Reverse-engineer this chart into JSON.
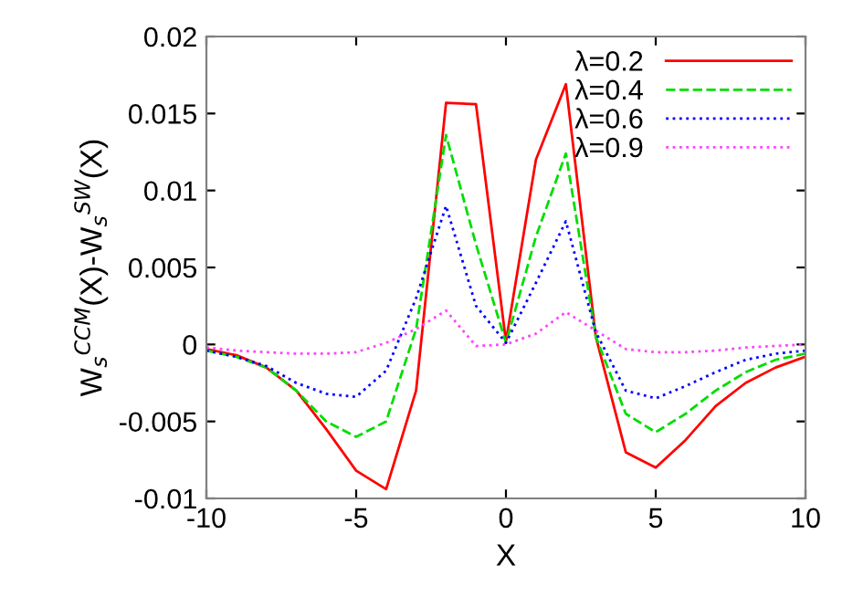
{
  "chart_data": {
    "type": "line",
    "xlabel": "X",
    "ylabel": "W$_{s}$$^{CCM}$(X)-W$_{s}$$^{SW}$(X)",
    "x": [
      -10,
      -9,
      -8,
      -7,
      -6,
      -5,
      -4,
      -3,
      -2,
      -1,
      0,
      1,
      2,
      3,
      4,
      5,
      6,
      7,
      8,
      9,
      10
    ],
    "xlim": [
      -10,
      10
    ],
    "xticks": [
      -10,
      -5,
      0,
      5,
      10
    ],
    "ylim": [
      -0.01,
      0.02
    ],
    "yticks": [
      -0.01,
      -0.005,
      0,
      0.005,
      0.01,
      0.015,
      0.02
    ],
    "legend": "top right",
    "grid": false,
    "series": [
      {
        "name": "λ=0.2",
        "color": "#ff0000",
        "line_style": "solid",
        "values": [
          -0.0003,
          -0.0007,
          -0.0015,
          -0.003,
          -0.0055,
          -0.0082,
          -0.0094,
          -0.003,
          0.0157,
          0.0156,
          0.0002,
          0.012,
          0.0169,
          0.0005,
          -0.007,
          -0.008,
          -0.0062,
          -0.004,
          -0.0025,
          -0.0015,
          -0.0008
        ]
      },
      {
        "name": "λ=0.4",
        "color": "#00dd00",
        "line_style": "dashed",
        "values": [
          -0.0004,
          -0.0008,
          -0.0015,
          -0.003,
          -0.005,
          -0.006,
          -0.005,
          0.001,
          0.0136,
          0.0065,
          0.0001,
          0.007,
          0.0124,
          0.0005,
          -0.0045,
          -0.0057,
          -0.0045,
          -0.003,
          -0.0018,
          -0.001,
          -0.0006
        ]
      },
      {
        "name": "λ=0.6",
        "color": "#0000ff",
        "line_style": "dotted",
        "values": [
          -0.0004,
          -0.0008,
          -0.0014,
          -0.0025,
          -0.0032,
          -0.0034,
          -0.0017,
          0.003,
          0.009,
          0.0025,
          0.0001,
          0.004,
          0.008,
          0.0008,
          -0.003,
          -0.0035,
          -0.0027,
          -0.0018,
          -0.001,
          -0.0006,
          -0.0004
        ]
      },
      {
        "name": "λ=0.9",
        "color": "#ff44ff",
        "line_style": "dotted",
        "values": [
          -0.0002,
          -0.0004,
          -0.0005,
          -0.0006,
          -0.0006,
          -0.0005,
          0.0001,
          0.001,
          0.0022,
          -0.0001,
          0,
          0.0007,
          0.0021,
          0.0009,
          -0.0003,
          -0.0005,
          -0.0005,
          -0.0004,
          -0.0002,
          -0.0001,
          0
        ]
      }
    ]
  }
}
